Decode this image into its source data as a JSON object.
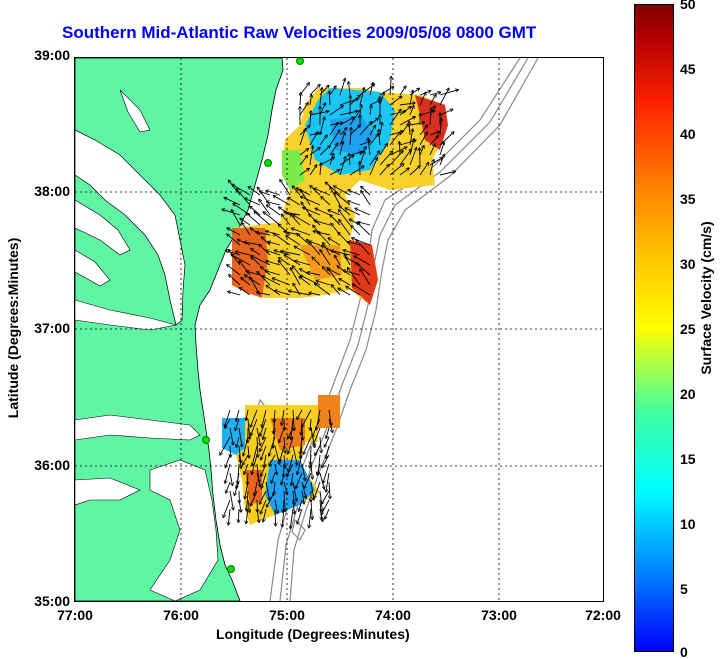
{
  "title": "Southern Mid-Atlantic Raw Velocities 2009/05/08 0800 GMT",
  "axes": {
    "xlabel": "Longitude (Degrees:Minutes)",
    "ylabel": "Latitude (Degrees:Minutes)",
    "x_ticks": [
      "77:00",
      "76:00",
      "75:00",
      "74:00",
      "73:00",
      "72:00"
    ],
    "y_ticks": [
      "39:00",
      "38:00",
      "37:00",
      "36:00",
      "35:00"
    ]
  },
  "colorbar": {
    "label": "Surface Velocity (cm/s)",
    "ticks": [
      "50",
      "45",
      "40",
      "35",
      "30",
      "25",
      "20",
      "15",
      "10",
      "5",
      "0"
    ]
  },
  "colors": {
    "land": "#5ff5a5",
    "title": "#0000ff",
    "bathymetry": "#8a8a8a"
  }
}
